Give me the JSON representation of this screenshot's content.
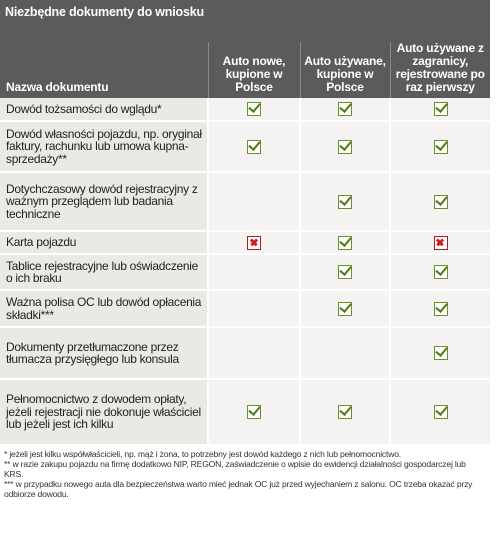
{
  "header": {
    "title": "Niezbędne dokumenty do wniosku"
  },
  "table": {
    "columns": [
      "Nazwa dokumentu",
      "Auto nowe, kupione w Polsce",
      "Auto używane, kupione w Polsce",
      "Auto używane z zagranicy, rejestrowane po raz pierwszy"
    ],
    "rows": [
      "Dowód tożsamości do wglądu*",
      "Dowód własności pojazdu, np. oryginał faktury, rachunku lub umowa kupna-sprzedaży**",
      "Dotychczasowy dowód rejestracyjny z ważnym przeglądem lub badania techniczne",
      "Karta pojazdu",
      "Tablice rejestracyjne lub oświadczenie o ich braku",
      "Ważna polisa OC lub dowód opłacenia składki***",
      "Dokumenty przetłumaczone przez tłumacza przysięgłego lub konsula",
      "Pełnomocnictwo z dowodem opłaty, jeżeli rejestracji nie dokonuje właściciel lub jeżeli jest ich kilku"
    ]
  },
  "footnotes": [
    "* jeżeli jest kilku współwłaścicieli, np. mąż i żona, to potrzebny jest dowód każdego z nich lub pełnomocnictwo.",
    "** w razie zakupu pojazdu na firmę dodatkowo NIP, REGON, zaświadczenie o wpisie do ewidencji działalności gospodarczej lub KRS.",
    "*** w przypadku nowego auta dla bezpieczeństwa warto mieć jednak OC już przed wyjechaniem z salonu. OC trzeba okazać przy odbiorze dowodu."
  ]
}
